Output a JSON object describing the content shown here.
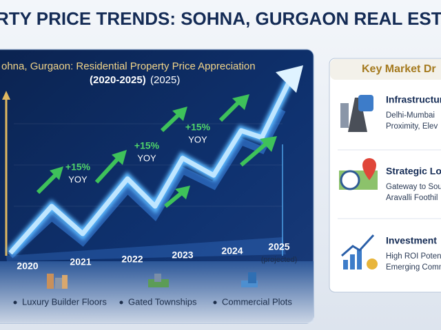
{
  "header": {
    "title": "RTY PRICE TRENDS: SOHNA, GURGAON REAL ESTATE OU"
  },
  "chart_panel": {
    "title": "ohna, Gurgaon: Residential Property Price Appreciation",
    "subtitle": "(2020-2025)",
    "subtitle_note": "(2025)",
    "years": [
      "2020",
      "2021",
      "2022",
      "2023",
      "2024",
      "2025"
    ],
    "projected_note": "(projected)",
    "annotations": [
      {
        "change": "+15%",
        "period": "YOY"
      },
      {
        "change": "+15%",
        "period": "YOY"
      },
      {
        "change": "+15%",
        "period": "YOY"
      }
    ],
    "segments": [
      "Luxury Builder Floors",
      "Gated Townships",
      "Commercial Plots"
    ]
  },
  "drivers_panel": {
    "title": "Key Market Dr",
    "items": [
      {
        "heading": "Infrastructur",
        "lines": [
          "Delhi-Mumbai",
          "Proximity, Elev"
        ]
      },
      {
        "heading": "Strategic Lo",
        "lines": [
          "Gateway to Sou",
          "Aravalli Foothil"
        ]
      },
      {
        "heading": "Investment",
        "lines": [
          "High ROI Poten",
          "Emerging Comm"
        ]
      }
    ]
  }
}
